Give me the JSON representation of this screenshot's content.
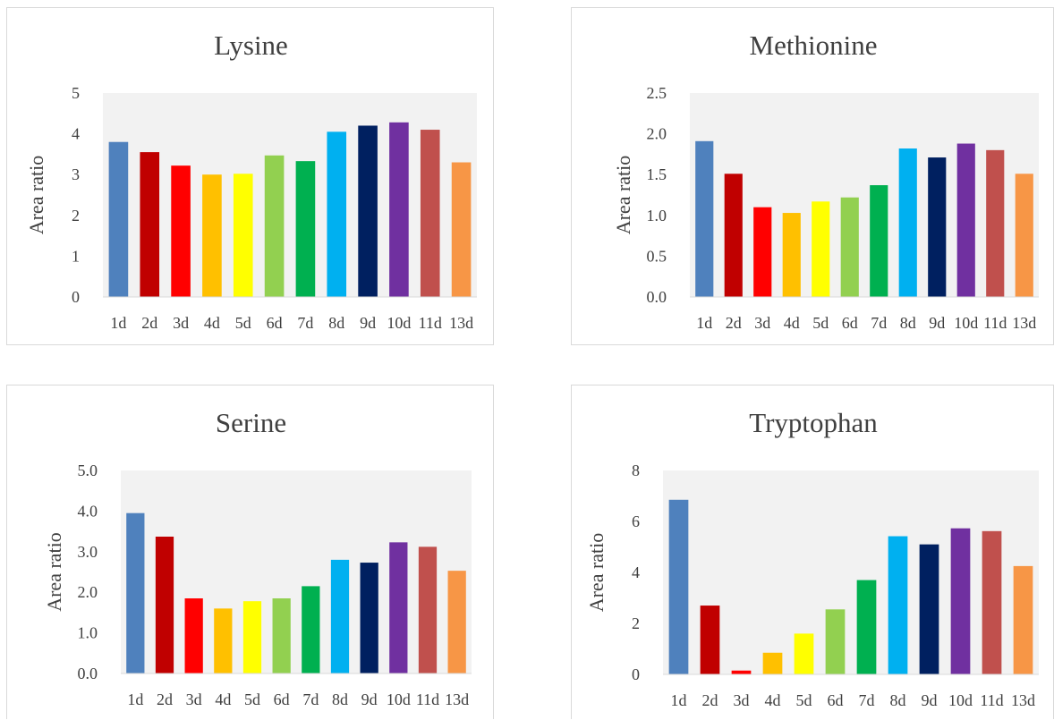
{
  "chart_data": [
    {
      "type": "bar",
      "title": "Lysine",
      "ylabel": "Area ratio",
      "ylim": [
        0,
        5
      ],
      "yticks": [
        "0",
        "1",
        "2",
        "3",
        "4",
        "5"
      ],
      "categories": [
        "1d",
        "2d",
        "3d",
        "4d",
        "5d",
        "6d",
        "7d",
        "8d",
        "9d",
        "10d",
        "11d",
        "13d"
      ],
      "values": [
        3.8,
        3.55,
        3.22,
        3.0,
        3.02,
        3.47,
        3.33,
        4.05,
        4.2,
        4.28,
        4.1,
        3.3
      ],
      "grid": false,
      "legend": "none"
    },
    {
      "type": "bar",
      "title": "Methionine",
      "ylabel": "Area ratio",
      "ylim": [
        0,
        2.5
      ],
      "yticks": [
        "0.0",
        "0.5",
        "1.0",
        "1.5",
        "2.0",
        "2.5"
      ],
      "categories": [
        "1d",
        "2d",
        "3d",
        "4d",
        "5d",
        "6d",
        "7d",
        "8d",
        "9d",
        "10d",
        "11d",
        "13d"
      ],
      "values": [
        1.91,
        1.51,
        1.1,
        1.03,
        1.17,
        1.22,
        1.37,
        1.82,
        1.71,
        1.88,
        1.8,
        1.51
      ],
      "grid": false,
      "legend": "none"
    },
    {
      "type": "bar",
      "title": "Serine",
      "ylabel": "Area ratio",
      "ylim": [
        0,
        5
      ],
      "yticks": [
        "0.0",
        "1.0",
        "2.0",
        "3.0",
        "4.0",
        "5.0"
      ],
      "categories": [
        "1d",
        "2d",
        "3d",
        "4d",
        "5d",
        "6d",
        "7d",
        "8d",
        "9d",
        "10d",
        "11d",
        "13d"
      ],
      "values": [
        3.95,
        3.37,
        1.85,
        1.6,
        1.78,
        1.85,
        2.15,
        2.8,
        2.73,
        3.23,
        3.12,
        2.53
      ],
      "grid": false,
      "legend": "none"
    },
    {
      "type": "bar",
      "title": "Tryptophan",
      "ylabel": "Area ratio",
      "ylim": [
        0,
        8
      ],
      "yticks": [
        "0",
        "2",
        "4",
        "6",
        "8"
      ],
      "categories": [
        "1d",
        "2d",
        "3d",
        "4d",
        "5d",
        "6d",
        "7d",
        "8d",
        "9d",
        "10d",
        "11d",
        "13d"
      ],
      "values": [
        6.85,
        2.7,
        0.15,
        0.85,
        1.6,
        2.55,
        3.7,
        5.42,
        5.1,
        5.73,
        5.62,
        4.25
      ],
      "grid": false,
      "legend": "none"
    }
  ],
  "colors": {
    "plot_background": "#f2f2f2",
    "text": "#404040",
    "axis": "#d9d9d9",
    "bars": [
      "#4f81bd",
      "#c00000",
      "#ff0000",
      "#ffc000",
      "#ffff00",
      "#92d050",
      "#00b050",
      "#00b0f0",
      "#002060",
      "#7030a0",
      "#c0504d",
      "#f79646"
    ]
  }
}
